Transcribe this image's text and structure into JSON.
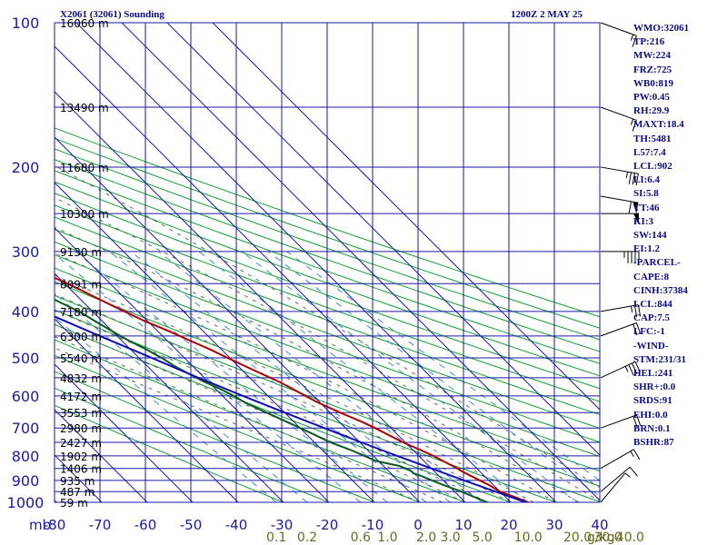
{
  "header": {
    "station_title": "X2061 (32061) Sounding",
    "time_title": "1200Z  2 MAY 25"
  },
  "stats": [
    "WMO:32061",
    "TP:216",
    "MW:224",
    "FRZ:725",
    "WB0:819",
    "PW:0.45",
    "RH:29.9",
    "MAXT:18.4",
    "TH:5481",
    "L57:7.4",
    "LCL:902",
    "LI:6.4",
    "SI:5.8",
    "TT:46",
    "KI:3",
    "SW:144",
    "EI:1.2",
    "-PARCEL-",
    "CAPE:8",
    "CINH:37384",
    "LCL:844",
    "CAP:7.5",
    "LFC:-1",
    "-WIND-",
    "STM:231/31",
    "HEL:241",
    "SHR+:0.0",
    "SRDS:91",
    "EHI:0.0",
    "BRN:0.1",
    "BSHR:87"
  ],
  "chart_data": {
    "type": "line",
    "title": "X2061 (32061) Sounding",
    "subtitle": "1200Z  2 MAY 25",
    "y_axis": {
      "unit_label": "mb",
      "scale": "log",
      "ylim": [
        1000,
        100
      ],
      "ticks": [
        "100",
        "200",
        "300",
        "400",
        "500",
        "600",
        "700",
        "800",
        "900",
        "1000"
      ]
    },
    "x_axis": {
      "xlim": [
        -80,
        0
      ],
      "ticks": [
        "-80",
        "-70",
        "-60",
        "-50",
        "-40",
        "-30",
        "-20",
        "-10",
        "0",
        "10",
        "20",
        "30",
        "40"
      ]
    },
    "mixing_ratio_ticks": [
      "0.1",
      "0.2",
      "0.6",
      "1.0",
      "2.0",
      "3.0",
      "5.0",
      "10.0",
      "20.0",
      "30.0",
      "40.0"
    ],
    "mixing_ratio_unit": "g/kg",
    "height_labels": [
      {
        "p": 100,
        "label": "16060 m"
      },
      {
        "p": 150,
        "label": "13490 m"
      },
      {
        "p": 200,
        "label": "11680 m"
      },
      {
        "p": 250,
        "label": "10300 m"
      },
      {
        "p": 300,
        "label": "9130 m"
      },
      {
        "p": 350,
        "label": "8091 m"
      },
      {
        "p": 400,
        "label": "7180 m"
      },
      {
        "p": 450,
        "label": "6300 m"
      },
      {
        "p": 500,
        "label": "5540 m"
      },
      {
        "p": 550,
        "label": "4832 m"
      },
      {
        "p": 600,
        "label": "4172 m"
      },
      {
        "p": 650,
        "label": "3553 m"
      },
      {
        "p": 700,
        "label": "2980 m"
      },
      {
        "p": 750,
        "label": "2427 m"
      },
      {
        "p": 800,
        "label": "1902 m"
      },
      {
        "p": 850,
        "label": "1406 m"
      },
      {
        "p": 900,
        "label": "935 m"
      },
      {
        "p": 950,
        "label": "487 m"
      },
      {
        "p": 1000,
        "label": "59 m"
      }
    ],
    "grid": true,
    "skew": 45,
    "colors": {
      "temperature": "#b00000",
      "dewpoint": "#0a5a1e",
      "parcel": "#1010b8",
      "isobars": "#1a1aa8",
      "isotherms": "#1a1aa8",
      "dry_adiabats": "#12a030",
      "moist_adiabats": "#666666",
      "mixing_ratio": "#3a8adc",
      "barbs": "#000000"
    },
    "series": [
      {
        "name": "temperature",
        "points": [
          [
            1002,
            14.0
          ],
          [
            980,
            12.5
          ],
          [
            950,
            10.0
          ],
          [
            920,
            9.0
          ],
          [
            900,
            8.0
          ],
          [
            880,
            7.0
          ],
          [
            860,
            6.0
          ],
          [
            850,
            5.7
          ],
          [
            820,
            4.2
          ],
          [
            800,
            3.2
          ],
          [
            780,
            1.8
          ],
          [
            750,
            -0.5
          ],
          [
            720,
            -2.3
          ],
          [
            700,
            -3.5
          ],
          [
            680,
            -5.0
          ],
          [
            650,
            -7.8
          ],
          [
            620,
            -10.4
          ],
          [
            600,
            -11.8
          ],
          [
            580,
            -13.0
          ],
          [
            560,
            -14.5
          ],
          [
            540,
            -16.5
          ],
          [
            520,
            -18.5
          ],
          [
            500,
            -20.5
          ],
          [
            480,
            -22.5
          ],
          [
            460,
            -25.0
          ],
          [
            440,
            -27.5
          ],
          [
            420,
            -30.5
          ],
          [
            400,
            -33.0
          ],
          [
            380,
            -35.5
          ],
          [
            360,
            -38.0
          ],
          [
            340,
            -41.0
          ],
          [
            320,
            -44.0
          ],
          [
            300,
            -46.5
          ],
          [
            280,
            -48.5
          ],
          [
            260,
            -50.5
          ],
          [
            250,
            -52.0
          ],
          [
            240,
            -53.0
          ],
          [
            225,
            -52.0
          ],
          [
            210,
            -53.0
          ],
          [
            200,
            -54.0
          ],
          [
            190,
            -55.5
          ],
          [
            180,
            -57.0
          ],
          [
            170,
            -58.0
          ],
          [
            160,
            -60.0
          ],
          [
            150,
            -62.0
          ],
          [
            140,
            -64.5
          ],
          [
            130,
            -66.0
          ],
          [
            120,
            -68.0
          ],
          [
            110,
            -70.5
          ],
          [
            104,
            -71.5
          ],
          [
            100,
            -72.0
          ]
        ]
      },
      {
        "name": "dewpoint",
        "points": [
          [
            1002,
            5.0
          ],
          [
            980,
            3.5
          ],
          [
            950,
            1.5
          ],
          [
            920,
            -1.0
          ],
          [
            900,
            -2.5
          ],
          [
            880,
            -4.0
          ],
          [
            870,
            -5.0
          ],
          [
            860,
            -5.0
          ],
          [
            840,
            -6.5
          ],
          [
            820,
            -10.5
          ],
          [
            800,
            -12.0
          ],
          [
            780,
            -13.5
          ],
          [
            750,
            -16.5
          ],
          [
            720,
            -18.5
          ],
          [
            700,
            -20.0
          ],
          [
            680,
            -21.5
          ],
          [
            650,
            -24.0
          ],
          [
            620,
            -26.5
          ],
          [
            600,
            -27.5
          ],
          [
            580,
            -29.0
          ],
          [
            560,
            -31.0
          ],
          [
            540,
            -32.5
          ],
          [
            520,
            -34.0
          ],
          [
            500,
            -35.0
          ],
          [
            480,
            -36.5
          ],
          [
            460,
            -38.5
          ],
          [
            440,
            -40.0
          ],
          [
            420,
            -41.5
          ],
          [
            400,
            -43.0
          ],
          [
            380,
            -45.5
          ],
          [
            360,
            -47.5
          ],
          [
            340,
            -50.0
          ],
          [
            320,
            -53.5
          ],
          [
            300,
            -56.0
          ],
          [
            280,
            -58.5
          ],
          [
            260,
            -60.5
          ],
          [
            240,
            -62.5
          ],
          [
            225,
            -65.5
          ],
          [
            215,
            -66.5
          ],
          [
            200,
            -66.0
          ],
          [
            190,
            -66.5
          ],
          [
            180,
            -67.0
          ],
          [
            170,
            -67.5
          ],
          [
            160,
            -68.5
          ],
          [
            150,
            -70.0
          ],
          [
            140,
            -72.0
          ],
          [
            130,
            -74.0
          ],
          [
            120,
            -76.0
          ],
          [
            110,
            -78.0
          ],
          [
            100,
            -79.0
          ]
        ]
      },
      {
        "name": "parcel",
        "points": [
          [
            1002,
            13.5
          ],
          [
            950,
            9.0
          ],
          [
            900,
            4.5
          ],
          [
            850,
            0.0
          ],
          [
            800,
            -4.8
          ],
          [
            750,
            -9.7
          ],
          [
            700,
            -14.7
          ],
          [
            650,
            -20.0
          ],
          [
            600,
            -25.5
          ],
          [
            550,
            -31.3
          ],
          [
            500,
            -37.2
          ],
          [
            450,
            -43.8
          ],
          [
            400,
            -51.0
          ],
          [
            350,
            -59.0
          ],
          [
            300,
            -68.0
          ],
          [
            250,
            -78.5
          ],
          [
            200,
            -91.0
          ]
        ]
      }
    ],
    "wind_barbs": [
      {
        "p": 100,
        "dir": 290,
        "spd": 15
      },
      {
        "p": 150,
        "dir": 290,
        "spd": 15
      },
      {
        "p": 200,
        "dir": 280,
        "spd": 35
      },
      {
        "p": 230,
        "dir": 280,
        "spd": 60
      },
      {
        "p": 250,
        "dir": 270,
        "spd": 50
      },
      {
        "p": 300,
        "dir": 270,
        "spd": 45
      },
      {
        "p": 400,
        "dir": 260,
        "spd": 25
      },
      {
        "p": 450,
        "dir": 250,
        "spd": 20
      },
      {
        "p": 550,
        "dir": 245,
        "spd": 35
      },
      {
        "p": 700,
        "dir": 250,
        "spd": 20
      },
      {
        "p": 850,
        "dir": 240,
        "spd": 15
      },
      {
        "p": 950,
        "dir": 230,
        "spd": 10
      },
      {
        "p": 1000,
        "dir": 220,
        "spd": 5
      }
    ]
  }
}
